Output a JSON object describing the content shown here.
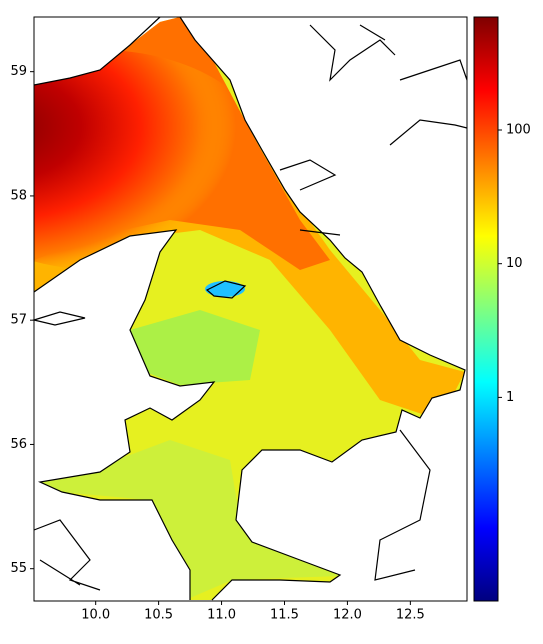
{
  "chart_data": {
    "type": "heatmap",
    "xlim": [
      9.51,
      12.95
    ],
    "xticks": [
      {
        "value": 10,
        "label": "10.0"
      },
      10.5,
      {
        "value": 11,
        "label": "11.0"
      },
      11.5,
      {
        "value": 12,
        "label": "12.0"
      },
      12.5
    ],
    "ylim": [
      54.74,
      59.44
    ],
    "yticks": [
      55,
      56,
      57,
      58,
      59
    ],
    "colorbar": {
      "scale": "log",
      "lim": [
        0.03,
        700
      ],
      "ticks": [
        1,
        10,
        100
      ]
    }
  }
}
